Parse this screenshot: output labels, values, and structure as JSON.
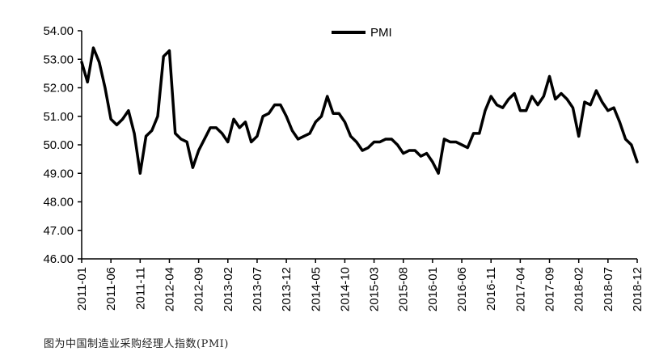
{
  "chart_data": {
    "type": "line",
    "legend": "top-center",
    "grid": false,
    "ylim": [
      46,
      54
    ],
    "y_ticks": [
      "46.00",
      "47.00",
      "48.00",
      "49.00",
      "50.00",
      "51.00",
      "52.00",
      "53.00",
      "54.00"
    ],
    "x_tick_labels": [
      "2011-01",
      "2011-06",
      "2011-11",
      "2012-04",
      "2012-09",
      "2013-02",
      "2013-07",
      "2013-12",
      "2014-05",
      "2014-10",
      "2015-03",
      "2015-08",
      "2016-01",
      "2016-06",
      "2016-11",
      "2017-04",
      "2017-09",
      "2018-02",
      "2018-07",
      "2018-12"
    ],
    "series": [
      {
        "name": "PMI",
        "color": "#000000",
        "values": [
          52.9,
          52.2,
          53.4,
          52.9,
          52.0,
          50.9,
          50.7,
          50.9,
          51.2,
          50.4,
          49.0,
          50.3,
          50.5,
          51.0,
          53.1,
          53.3,
          50.4,
          50.2,
          50.1,
          49.2,
          49.8,
          50.2,
          50.6,
          50.6,
          50.4,
          50.1,
          50.9,
          50.6,
          50.8,
          50.1,
          50.3,
          51.0,
          51.1,
          51.4,
          51.4,
          51.0,
          50.5,
          50.2,
          50.3,
          50.4,
          50.8,
          51.0,
          51.7,
          51.1,
          51.1,
          50.8,
          50.3,
          50.1,
          49.8,
          49.9,
          50.1,
          50.1,
          50.2,
          50.2,
          50.0,
          49.7,
          49.8,
          49.8,
          49.6,
          49.7,
          49.4,
          49.0,
          50.2,
          50.1,
          50.1,
          50.0,
          49.9,
          50.4,
          50.4,
          51.2,
          51.7,
          51.4,
          51.3,
          51.6,
          51.8,
          51.2,
          51.2,
          51.7,
          51.4,
          51.7,
          52.4,
          51.6,
          51.8,
          51.6,
          51.3,
          50.3,
          51.5,
          51.4,
          51.9,
          51.5,
          51.2,
          51.3,
          50.8,
          50.2,
          50.0,
          49.4
        ]
      }
    ]
  },
  "caption": "图为中国制造业采购经理人指数(PMI)"
}
